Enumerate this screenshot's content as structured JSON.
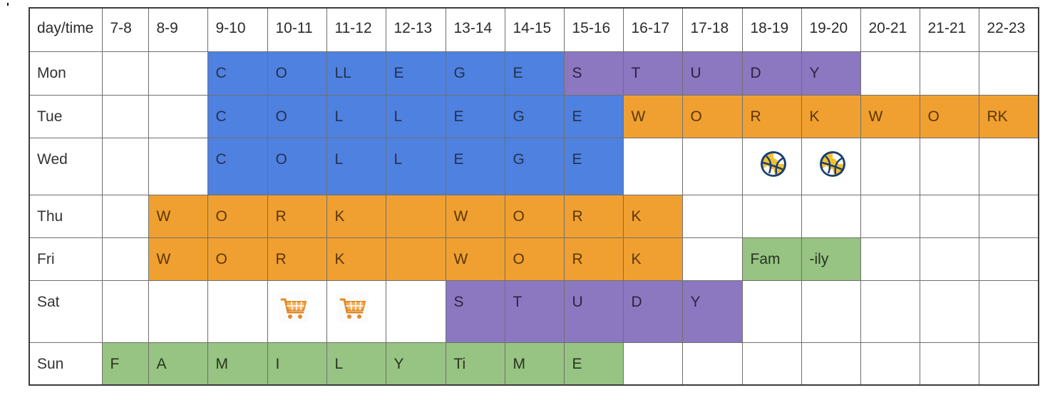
{
  "header": {
    "corner_label": "day/time",
    "time_slots": [
      "7-8",
      "8-9",
      "9-10",
      "10-11",
      "11-12",
      "12-13",
      "13-14",
      "14-15",
      "15-16",
      "16-17",
      "17-18",
      "18-19",
      "19-20",
      "20-21",
      "21-21",
      "22-23"
    ]
  },
  "colors": {
    "college": "#4f81e0",
    "study": "#8c78c0",
    "work": "#f0a030",
    "family": "#97c383",
    "empty": "#ffffff"
  },
  "rows": [
    {
      "day": "Mon",
      "cells": [
        {
          "text": "",
          "color": "white"
        },
        {
          "text": "",
          "color": "white"
        },
        {
          "text": "C",
          "color": "blue"
        },
        {
          "text": "O",
          "color": "blue"
        },
        {
          "text": "LL",
          "color": "blue"
        },
        {
          "text": "E",
          "color": "blue"
        },
        {
          "text": "G",
          "color": "blue"
        },
        {
          "text": "E",
          "color": "blue"
        },
        {
          "text": "S",
          "color": "purple"
        },
        {
          "text": "T",
          "color": "purple"
        },
        {
          "text": "U",
          "color": "purple"
        },
        {
          "text": "D",
          "color": "purple"
        },
        {
          "text": "Y",
          "color": "purple"
        },
        {
          "text": "",
          "color": "white"
        },
        {
          "text": "",
          "color": "white"
        },
        {
          "text": "",
          "color": "white"
        }
      ]
    },
    {
      "day": "Tue",
      "cells": [
        {
          "text": "",
          "color": "white"
        },
        {
          "text": "",
          "color": "white"
        },
        {
          "text": "C",
          "color": "blue"
        },
        {
          "text": "O",
          "color": "blue"
        },
        {
          "text": "L",
          "color": "blue"
        },
        {
          "text": "L",
          "color": "blue"
        },
        {
          "text": "E",
          "color": "blue"
        },
        {
          "text": "G",
          "color": "blue"
        },
        {
          "text": "E",
          "color": "blue"
        },
        {
          "text": "W",
          "color": "orange"
        },
        {
          "text": "O",
          "color": "orange"
        },
        {
          "text": "R",
          "color": "orange"
        },
        {
          "text": "K",
          "color": "orange"
        },
        {
          "text": "W",
          "color": "orange"
        },
        {
          "text": "O",
          "color": "orange"
        },
        {
          "text": "RK",
          "color": "orange"
        }
      ]
    },
    {
      "day": "Wed",
      "cells": [
        {
          "text": "",
          "color": "white"
        },
        {
          "text": "",
          "color": "white"
        },
        {
          "text": "C",
          "color": "blue"
        },
        {
          "text": "O",
          "color": "blue"
        },
        {
          "text": "L",
          "color": "blue"
        },
        {
          "text": "L",
          "color": "blue"
        },
        {
          "text": "E",
          "color": "blue"
        },
        {
          "text": "G",
          "color": "blue"
        },
        {
          "text": "E",
          "color": "blue"
        },
        {
          "text": "",
          "color": "white"
        },
        {
          "text": "",
          "color": "white"
        },
        {
          "text": "",
          "color": "white",
          "icon": "volleyball-icon"
        },
        {
          "text": "",
          "color": "white",
          "icon": "volleyball-icon"
        },
        {
          "text": "",
          "color": "white"
        },
        {
          "text": "",
          "color": "white"
        },
        {
          "text": "",
          "color": "white"
        }
      ]
    },
    {
      "day": "Thu",
      "cells": [
        {
          "text": "",
          "color": "white"
        },
        {
          "text": "W",
          "color": "orange"
        },
        {
          "text": "O",
          "color": "orange"
        },
        {
          "text": "R",
          "color": "orange"
        },
        {
          "text": "K",
          "color": "orange"
        },
        {
          "text": "",
          "color": "orange"
        },
        {
          "text": "W",
          "color": "orange"
        },
        {
          "text": "O",
          "color": "orange"
        },
        {
          "text": "R",
          "color": "orange"
        },
        {
          "text": "K",
          "color": "orange"
        },
        {
          "text": "",
          "color": "white"
        },
        {
          "text": "",
          "color": "white"
        },
        {
          "text": "",
          "color": "white"
        },
        {
          "text": "",
          "color": "white"
        },
        {
          "text": "",
          "color": "white"
        },
        {
          "text": "",
          "color": "white"
        }
      ]
    },
    {
      "day": "Fri",
      "cells": [
        {
          "text": "",
          "color": "white"
        },
        {
          "text": "W",
          "color": "orange"
        },
        {
          "text": "O",
          "color": "orange"
        },
        {
          "text": "R",
          "color": "orange"
        },
        {
          "text": "K",
          "color": "orange"
        },
        {
          "text": "",
          "color": "orange"
        },
        {
          "text": "W",
          "color": "orange"
        },
        {
          "text": "O",
          "color": "orange"
        },
        {
          "text": "R",
          "color": "orange"
        },
        {
          "text": "K",
          "color": "orange"
        },
        {
          "text": "",
          "color": "white"
        },
        {
          "text": "Fam",
          "color": "green"
        },
        {
          "text": "-ily",
          "color": "green"
        },
        {
          "text": "",
          "color": "white"
        },
        {
          "text": "",
          "color": "white"
        },
        {
          "text": "",
          "color": "white"
        }
      ]
    },
    {
      "day": "Sat",
      "cells": [
        {
          "text": "",
          "color": "white"
        },
        {
          "text": "",
          "color": "white"
        },
        {
          "text": "",
          "color": "white"
        },
        {
          "text": "",
          "color": "white",
          "icon": "shopping-cart-icon"
        },
        {
          "text": "",
          "color": "white",
          "icon": "shopping-cart-icon"
        },
        {
          "text": "",
          "color": "white"
        },
        {
          "text": "S",
          "color": "purple"
        },
        {
          "text": "T",
          "color": "purple"
        },
        {
          "text": "U",
          "color": "purple"
        },
        {
          "text": "D",
          "color": "purple"
        },
        {
          "text": "Y",
          "color": "purple"
        },
        {
          "text": "",
          "color": "white"
        },
        {
          "text": "",
          "color": "white"
        },
        {
          "text": "",
          "color": "white"
        },
        {
          "text": "",
          "color": "white"
        },
        {
          "text": "",
          "color": "white"
        }
      ]
    },
    {
      "day": "Sun",
      "cells": [
        {
          "text": "F",
          "color": "green"
        },
        {
          "text": "A",
          "color": "green"
        },
        {
          "text": "M",
          "color": "green"
        },
        {
          "text": "I",
          "color": "green"
        },
        {
          "text": "L",
          "color": "green"
        },
        {
          "text": "Y",
          "color": "green"
        },
        {
          "text": "Ti",
          "color": "green"
        },
        {
          "text": "M",
          "color": "green"
        },
        {
          "text": "E",
          "color": "green"
        },
        {
          "text": "",
          "color": "white"
        },
        {
          "text": "",
          "color": "white"
        },
        {
          "text": "",
          "color": "white"
        },
        {
          "text": "",
          "color": "white"
        },
        {
          "text": "",
          "color": "white"
        },
        {
          "text": "",
          "color": "white"
        },
        {
          "text": "",
          "color": "white"
        }
      ]
    }
  ]
}
